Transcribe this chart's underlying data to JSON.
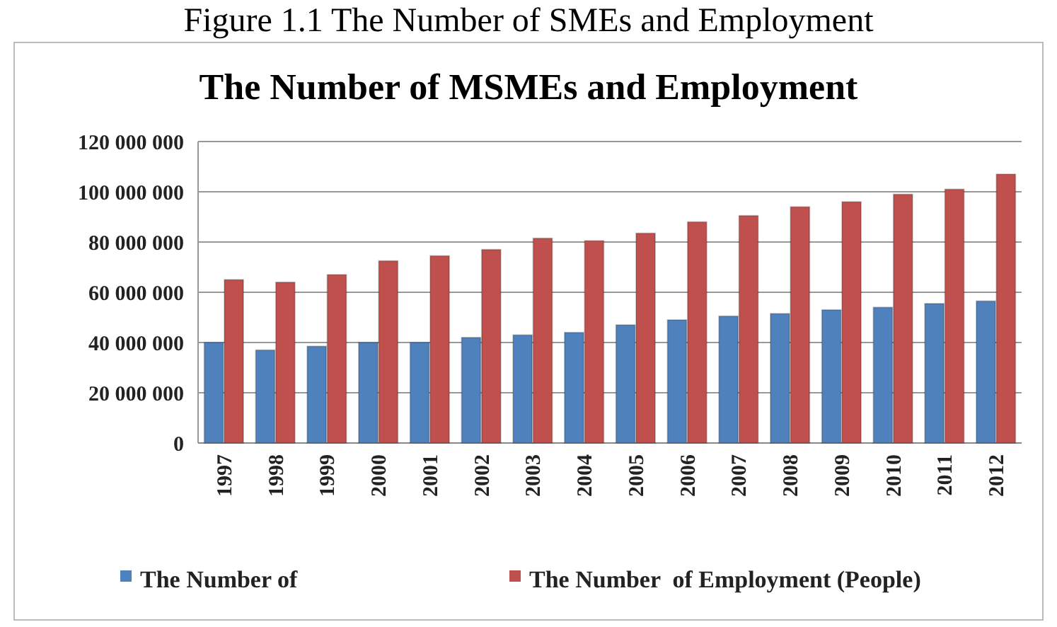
{
  "chart_data": {
    "type": "bar",
    "title": "Figure 1.1 The Number of SMEs and Employment",
    "subtitle": "The Number of MSMEs and Employment",
    "categories": [
      "1997",
      "1998",
      "1999",
      "2000",
      "2001",
      "2002",
      "2003",
      "2004",
      "2005",
      "2006",
      "2007",
      "2008",
      "2009",
      "2010",
      "2011",
      "2012"
    ],
    "series": [
      {
        "name": "The Number of",
        "color": "#4f81bd",
        "values": [
          40000000,
          37000000,
          38500000,
          40000000,
          40000000,
          42000000,
          43000000,
          44000000,
          47000000,
          49000000,
          50500000,
          51500000,
          53000000,
          54000000,
          55500000,
          56500000
        ]
      },
      {
        "name": "The Number  of Employment (People)",
        "color": "#c0504d",
        "values": [
          65000000,
          64000000,
          67000000,
          72500000,
          74500000,
          77000000,
          81500000,
          80500000,
          83500000,
          88000000,
          90500000,
          94000000,
          96000000,
          99000000,
          101000000,
          107000000
        ]
      }
    ],
    "ylim": [
      0,
      120000000
    ],
    "yticks": [
      {
        "value": 0,
        "label": "0"
      },
      {
        "value": 20000000,
        "label": "20 000 000"
      },
      {
        "value": 40000000,
        "label": "40 000 000"
      },
      {
        "value": 60000000,
        "label": "60 000 000"
      },
      {
        "value": 80000000,
        "label": "80 000 000"
      },
      {
        "value": 100000000,
        "label": "100 000 000"
      },
      {
        "value": 120000000,
        "label": "120 000 000"
      }
    ],
    "grid": "y",
    "legend": "bottom"
  }
}
